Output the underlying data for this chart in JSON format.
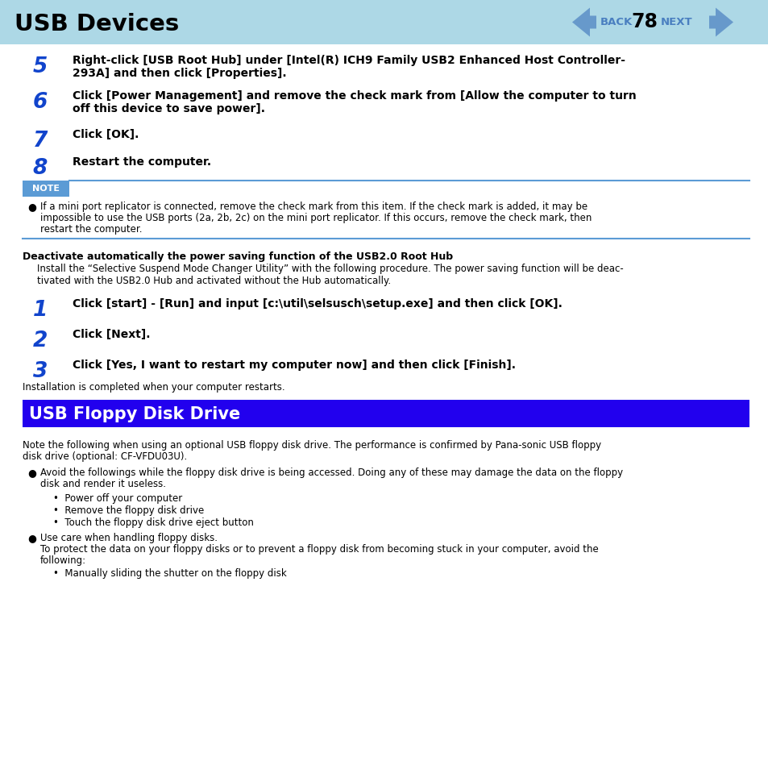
{
  "bg_color": "#ffffff",
  "header_bg": "#add8e6",
  "header_title": "USB Devices",
  "header_title_color": "#000000",
  "page_num": "78",
  "back_text": "BACK",
  "next_text": "NEXT",
  "nav_color": "#4a7fc0",
  "note_bg": "#5b9bd5",
  "note_label": "NOTE",
  "note_label_color": "#ffffff",
  "section2_bg": "#2200ee",
  "section2_title": "USB Floppy Disk Drive",
  "section2_title_color": "#ffffff",
  "line_color": "#5b9bd5",
  "step_number_color": "#1144cc",
  "step_text_color": "#000000",
  "body_color": "#000000"
}
